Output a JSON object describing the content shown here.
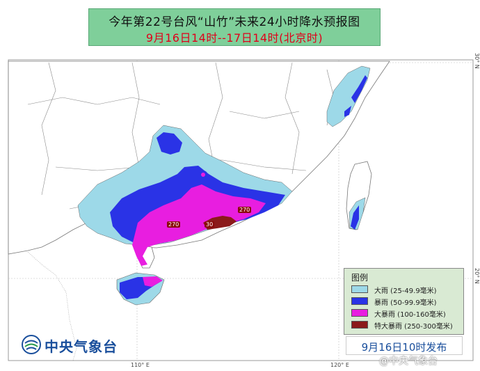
{
  "title": {
    "line1": "今年第22号台风“山竹”未来24小时降水预报图",
    "line2": "9月16日14时--17日14时(北京时)"
  },
  "legend": {
    "title": "图例",
    "items": [
      {
        "label": "大雨 (25-49.9毫米)",
        "color": "#9dd9e8"
      },
      {
        "label": "暴雨 (50-99.9毫米)",
        "color": "#2a33e6"
      },
      {
        "label": "大暴雨 (100-160毫米)",
        "color": "#e81ee0"
      },
      {
        "label": "特大暴雨 (250-300毫米)",
        "color": "#8b1a1a"
      }
    ]
  },
  "map_labels": {
    "v1": "270",
    "v2": "30",
    "v3": "270"
  },
  "coords": {
    "lon110": "110° E",
    "lon120": "120° E",
    "lat30": "30° N",
    "lat20": "20° N"
  },
  "publisher": "中央气象台",
  "publish_time": "9月16日10时发布",
  "watermark": "@中央气象台",
  "colors": {
    "title_bg": "#7fcf9a",
    "heavy_rain": "#9dd9e8",
    "rainstorm": "#2a33e6",
    "heavy_rainstorm": "#e81ee0",
    "extreme_rainstorm": "#8b1a1a",
    "land": "#ffffff",
    "sea": "#ffffff"
  }
}
